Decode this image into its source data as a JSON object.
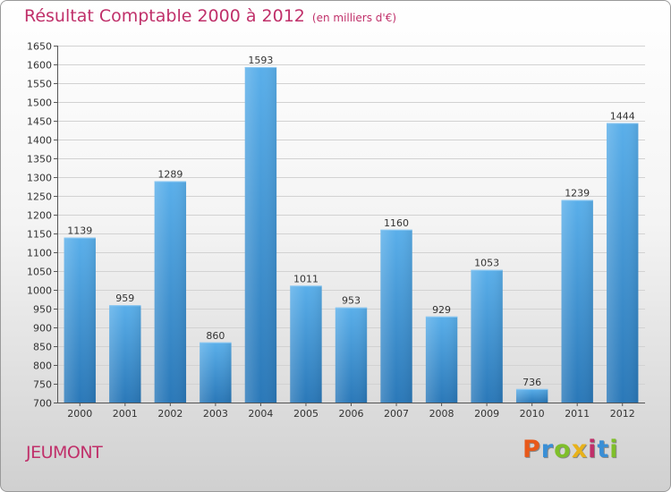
{
  "page": {
    "title": "Résultat Comptable 2000 à 2012",
    "subtitle": "(en milliers d'€)",
    "commune": "JEUMONT",
    "logo": {
      "text": "Proxiti",
      "letters": [
        {
          "ch": "P",
          "color": "#e8591a"
        },
        {
          "ch": "r",
          "color": "#3a8fd6"
        },
        {
          "ch": "o",
          "color": "#7fbf2a"
        },
        {
          "ch": "x",
          "color": "#e8b21a"
        },
        {
          "ch": "i",
          "color": "#c0306a"
        },
        {
          "ch": "t",
          "color": "#3a8fd6"
        },
        {
          "ch": "i",
          "color": "#7fbf2a"
        }
      ]
    },
    "colors": {
      "accent": "#c0306a",
      "bar_top": "#5aafea",
      "bar_bottom": "#2a78b8"
    }
  },
  "chart_data": {
    "type": "bar",
    "title": "Résultat Comptable 2000 à 2012",
    "subtitle": "(en milliers d'€)",
    "xlabel": "",
    "ylabel": "",
    "categories": [
      "2000",
      "2001",
      "2002",
      "2003",
      "2004",
      "2005",
      "2006",
      "2007",
      "2008",
      "2009",
      "2010",
      "2011",
      "2012"
    ],
    "values": [
      1139,
      959,
      1289,
      860,
      1593,
      1011,
      953,
      1160,
      929,
      1053,
      736,
      1239,
      1444
    ],
    "ylim": [
      700,
      1650
    ],
    "ytick_step": 50,
    "grid": true,
    "legend": "none"
  }
}
